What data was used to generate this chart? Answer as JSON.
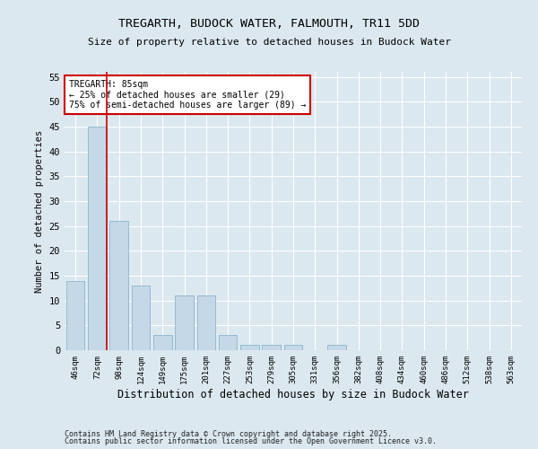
{
  "title1": "TREGARTH, BUDOCK WATER, FALMOUTH, TR11 5DD",
  "title2": "Size of property relative to detached houses in Budock Water",
  "xlabel": "Distribution of detached houses by size in Budock Water",
  "ylabel": "Number of detached properties",
  "categories": [
    "46sqm",
    "72sqm",
    "98sqm",
    "124sqm",
    "149sqm",
    "175sqm",
    "201sqm",
    "227sqm",
    "253sqm",
    "279sqm",
    "305sqm",
    "331sqm",
    "356sqm",
    "382sqm",
    "408sqm",
    "434sqm",
    "460sqm",
    "486sqm",
    "512sqm",
    "538sqm",
    "563sqm"
  ],
  "values": [
    14,
    45,
    26,
    13,
    3,
    11,
    11,
    3,
    1,
    1,
    1,
    0,
    1,
    0,
    0,
    0,
    0,
    0,
    0,
    0,
    0
  ],
  "bar_color": "#c5d8e8",
  "bar_edge_color": "#8ab4cc",
  "vline_color": "#cc0000",
  "annotation_title": "TREGARTH: 85sqm",
  "annotation_line1": "← 25% of detached houses are smaller (29)",
  "annotation_line2": "75% of semi-detached houses are larger (89) →",
  "annotation_box_color": "#cc0000",
  "ylim": [
    0,
    56
  ],
  "yticks": [
    0,
    5,
    10,
    15,
    20,
    25,
    30,
    35,
    40,
    45,
    50,
    55
  ],
  "footer1": "Contains HM Land Registry data © Crown copyright and database right 2025.",
  "footer2": "Contains public sector information licensed under the Open Government Licence v3.0.",
  "bg_color": "#dce8f0",
  "plot_bg_color": "#dce8f0"
}
